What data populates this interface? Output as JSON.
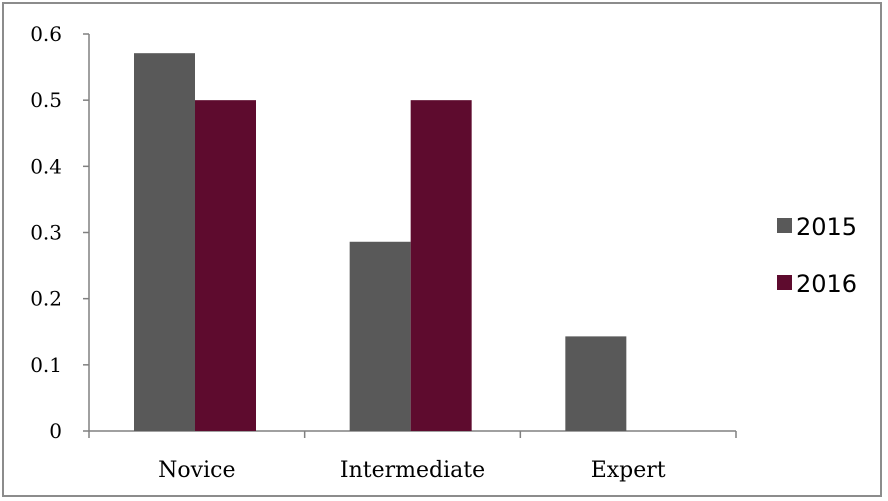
{
  "chart_data": {
    "type": "bar",
    "title": "",
    "xlabel": "",
    "ylabel": "",
    "categories": [
      "Novice",
      "Intermediate",
      "Expert"
    ],
    "series": [
      {
        "name": "2015",
        "color": "#595959",
        "values": [
          0.571,
          0.286,
          0.143
        ]
      },
      {
        "name": "2016",
        "color": "#5e0b2e",
        "values": [
          0.5,
          0.5,
          0
        ]
      }
    ],
    "ylim": [
      0,
      0.6
    ],
    "yticks": [
      "0",
      "0.1",
      "0.2",
      "0.3",
      "0.4",
      "0.5",
      "0.6"
    ],
    "grid": false,
    "legend_position": "right",
    "axis_color": "#808080"
  }
}
